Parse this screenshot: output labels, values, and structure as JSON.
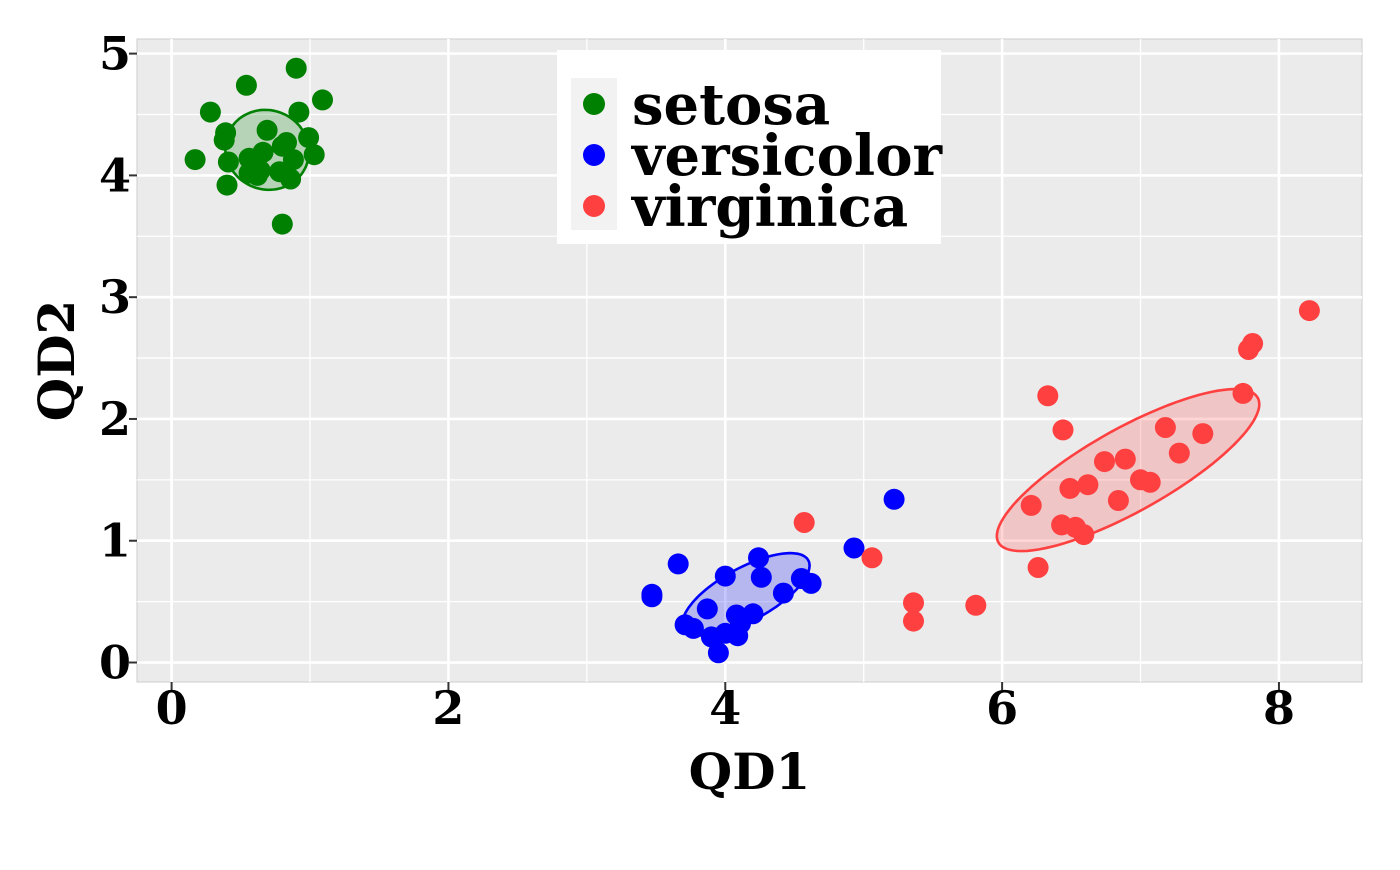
{
  "chart_data": {
    "type": "scatter",
    "title": "",
    "xlabel": "QD1",
    "ylabel": "QD2",
    "xlim": [
      -0.25,
      8.6
    ],
    "ylim": [
      -0.16,
      5.12
    ],
    "x_ticks": [
      0,
      2,
      4,
      6,
      8
    ],
    "y_ticks": [
      0,
      1,
      2,
      3,
      4,
      5
    ],
    "x_tick_labels": [
      "0",
      "2",
      "4",
      "6",
      "8"
    ],
    "y_tick_labels": [
      "0",
      "1",
      "2",
      "3",
      "4",
      "5"
    ],
    "grid": true,
    "legend_position": "top-center",
    "background_color": "#ebebeb",
    "grid_color": "#ffffff",
    "series": [
      {
        "name": "setosa",
        "color": "#008000",
        "points": [
          [
            0.17,
            4.13
          ],
          [
            0.28,
            4.52
          ],
          [
            0.38,
            4.29
          ],
          [
            0.39,
            4.35
          ],
          [
            0.4,
            3.92
          ],
          [
            0.41,
            4.11
          ],
          [
            0.54,
            4.74
          ],
          [
            0.56,
            4.14
          ],
          [
            0.56,
            4.02
          ],
          [
            0.6,
            4.1
          ],
          [
            0.62,
            4.0
          ],
          [
            0.64,
            4.04
          ],
          [
            0.66,
            4.19
          ],
          [
            0.69,
            4.37
          ],
          [
            0.78,
            4.03
          ],
          [
            0.8,
            3.6
          ],
          [
            0.8,
            4.24
          ],
          [
            0.83,
            4.27
          ],
          [
            0.86,
            3.97
          ],
          [
            0.88,
            4.13
          ],
          [
            0.9,
            4.88
          ],
          [
            0.92,
            4.52
          ],
          [
            0.99,
            4.31
          ],
          [
            1.03,
            4.17
          ],
          [
            1.09,
            4.62
          ]
        ],
        "ellipse": {
          "cx": 0.69,
          "cy": 4.21,
          "rx": 0.3,
          "ry": 0.33,
          "angle_deg": 15
        }
      },
      {
        "name": "versicolor",
        "color": "#0000ff",
        "points": [
          [
            3.47,
            0.56
          ],
          [
            3.47,
            0.54
          ],
          [
            3.66,
            0.81
          ],
          [
            3.71,
            0.31
          ],
          [
            3.77,
            0.28
          ],
          [
            3.87,
            0.44
          ],
          [
            3.9,
            0.21
          ],
          [
            3.95,
            0.08
          ],
          [
            4.0,
            0.71
          ],
          [
            4.0,
            0.24
          ],
          [
            4.08,
            0.39
          ],
          [
            4.09,
            0.22
          ],
          [
            4.11,
            0.32
          ],
          [
            4.2,
            0.4
          ],
          [
            4.24,
            0.86
          ],
          [
            4.26,
            0.7
          ],
          [
            4.42,
            0.57
          ],
          [
            4.55,
            0.69
          ],
          [
            4.62,
            0.65
          ],
          [
            4.93,
            0.94
          ],
          [
            5.22,
            1.34
          ]
        ],
        "ellipse": {
          "cx": 4.15,
          "cy": 0.56,
          "rx": 0.53,
          "ry": 0.21,
          "angle_deg": 33
        }
      },
      {
        "name": "virginica",
        "color": "#ff4040",
        "points": [
          [
            4.57,
            1.15
          ],
          [
            5.06,
            0.86
          ],
          [
            5.36,
            0.49
          ],
          [
            5.36,
            0.34
          ],
          [
            5.81,
            0.47
          ],
          [
            6.21,
            1.29
          ],
          [
            6.26,
            0.78
          ],
          [
            6.33,
            2.19
          ],
          [
            6.43,
            1.13
          ],
          [
            6.44,
            1.91
          ],
          [
            6.49,
            1.43
          ],
          [
            6.53,
            1.11
          ],
          [
            6.59,
            1.05
          ],
          [
            6.62,
            1.46
          ],
          [
            6.74,
            1.65
          ],
          [
            6.84,
            1.33
          ],
          [
            6.89,
            1.67
          ],
          [
            7.0,
            1.5
          ],
          [
            7.07,
            1.48
          ],
          [
            7.18,
            1.93
          ],
          [
            7.28,
            1.72
          ],
          [
            7.45,
            1.88
          ],
          [
            7.74,
            2.21
          ],
          [
            7.78,
            2.57
          ],
          [
            7.81,
            2.62
          ],
          [
            8.22,
            2.89
          ]
        ],
        "ellipse": {
          "cx": 6.91,
          "cy": 1.58,
          "rx": 1.11,
          "ry": 0.33,
          "angle_deg": 33
        }
      }
    ]
  }
}
